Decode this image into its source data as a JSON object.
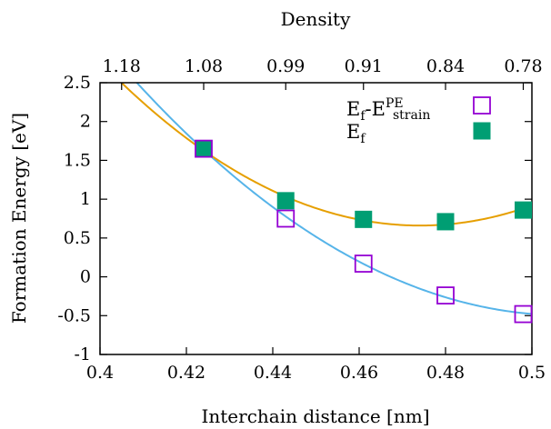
{
  "chart_data": {
    "type": "scatter",
    "title": "",
    "xlabel": "Interchain distance [nm]",
    "ylabel": "Formation Energy [eV]",
    "top_axis_label": "Density",
    "xlim": [
      0.4,
      0.5
    ],
    "ylim": [
      -1,
      2.5
    ],
    "x_ticks": [
      "0.4",
      "0.42",
      "0.44",
      "0.46",
      "0.48",
      "0.5"
    ],
    "y_ticks": [
      "-1",
      "-0.5",
      "0",
      "0.5",
      "1",
      "1.5",
      "2",
      "2.5"
    ],
    "top_ticks": [
      {
        "x": 0.405,
        "label": "1.18"
      },
      {
        "x": 0.424,
        "label": "1.08"
      },
      {
        "x": 0.443,
        "label": "0.99"
      },
      {
        "x": 0.461,
        "label": "0.91"
      },
      {
        "x": 0.48,
        "label": "0.84"
      },
      {
        "x": 0.498,
        "label": "0.78"
      }
    ],
    "grid": false,
    "legend_position": "top-right",
    "series": [
      {
        "name": "Ef-EPEstrain",
        "legend": {
          "main": "E",
          "sub": "f",
          "dash": "-E",
          "sup": "PE",
          "sub2": "strain"
        },
        "marker": "open-square",
        "color": "#9400d3",
        "fit_color": "#56b4e9",
        "x": [
          0.424,
          0.443,
          0.461,
          0.48,
          0.498
        ],
        "y": [
          1.65,
          0.75,
          0.17,
          -0.24,
          -0.48
        ]
      },
      {
        "name": "Ef",
        "legend": {
          "main": "E",
          "sub": "f"
        },
        "marker": "filled-square",
        "color": "#009e73",
        "fit_color": "#e69f00",
        "x": [
          0.424,
          0.443,
          0.461,
          0.48,
          0.498
        ],
        "y": [
          1.65,
          0.98,
          0.74,
          0.71,
          0.86
        ]
      }
    ]
  }
}
